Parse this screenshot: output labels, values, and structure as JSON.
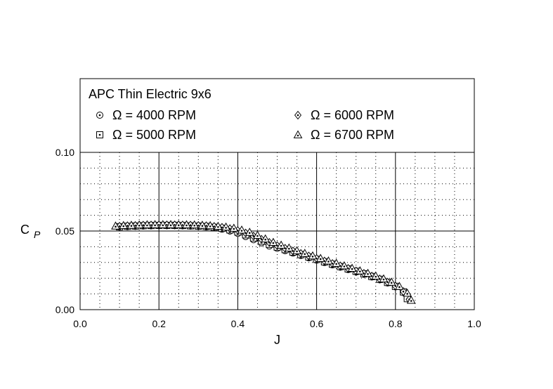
{
  "chart_data": {
    "type": "scatter",
    "title": "APC Thin Electric 9x6",
    "xlabel": "J",
    "ylabel_main": "C",
    "ylabel_sub": "P",
    "xlim": [
      0.0,
      1.0
    ],
    "ylim": [
      0.0,
      0.15
    ],
    "x_ticks": [
      "0.0",
      "0.2",
      "0.4",
      "0.6",
      "0.8",
      "1.0"
    ],
    "y_ticks": [
      "0.00",
      "0.05",
      "0.10"
    ],
    "grid": true,
    "legend_placement": "top",
    "series": [
      {
        "name": "Ω = 4000 RPM",
        "marker": "circle-dot",
        "x": [
          0.1,
          0.12,
          0.14,
          0.16,
          0.18,
          0.2,
          0.22,
          0.24,
          0.26,
          0.28,
          0.3,
          0.32,
          0.34,
          0.36,
          0.38,
          0.4,
          0.42,
          0.44,
          0.46,
          0.48,
          0.5,
          0.52,
          0.54,
          0.56,
          0.58,
          0.6,
          0.62,
          0.64,
          0.66,
          0.68,
          0.7,
          0.72,
          0.74,
          0.76,
          0.78,
          0.8,
          0.82,
          0.83
        ],
        "y": [
          0.0525,
          0.0528,
          0.053,
          0.0532,
          0.0533,
          0.0534,
          0.0534,
          0.0534,
          0.0533,
          0.0531,
          0.0529,
          0.0526,
          0.052,
          0.0512,
          0.05,
          0.0485,
          0.0465,
          0.0445,
          0.0425,
          0.0405,
          0.039,
          0.0375,
          0.036,
          0.0345,
          0.033,
          0.0315,
          0.03,
          0.0285,
          0.027,
          0.0255,
          0.024,
          0.0225,
          0.0208,
          0.019,
          0.017,
          0.0145,
          0.011,
          0.007
        ]
      },
      {
        "name": "Ω = 5000 RPM",
        "marker": "square-dot",
        "x": [
          0.1,
          0.12,
          0.14,
          0.16,
          0.18,
          0.2,
          0.22,
          0.24,
          0.26,
          0.28,
          0.3,
          0.32,
          0.34,
          0.36,
          0.38,
          0.4,
          0.42,
          0.44,
          0.46,
          0.48,
          0.5,
          0.52,
          0.54,
          0.56,
          0.58,
          0.6,
          0.62,
          0.64,
          0.66,
          0.68,
          0.7,
          0.72,
          0.74,
          0.76,
          0.78,
          0.8,
          0.82,
          0.83
        ],
        "y": [
          0.0527,
          0.053,
          0.0532,
          0.0534,
          0.0535,
          0.0536,
          0.0536,
          0.0536,
          0.0535,
          0.0533,
          0.0531,
          0.0529,
          0.0524,
          0.0517,
          0.0507,
          0.0494,
          0.0476,
          0.0456,
          0.0436,
          0.0416,
          0.0398,
          0.0382,
          0.0366,
          0.035,
          0.0335,
          0.032,
          0.0304,
          0.0289,
          0.0274,
          0.0259,
          0.0244,
          0.0228,
          0.0211,
          0.0193,
          0.0173,
          0.0148,
          0.0113,
          0.007
        ]
      },
      {
        "name": "Ω = 6000 RPM",
        "marker": "diamond-dot",
        "x": [
          0.1,
          0.12,
          0.14,
          0.16,
          0.18,
          0.2,
          0.22,
          0.24,
          0.26,
          0.28,
          0.3,
          0.32,
          0.34,
          0.36,
          0.38,
          0.4,
          0.42,
          0.44,
          0.46,
          0.48,
          0.5,
          0.52,
          0.54,
          0.56,
          0.58,
          0.6,
          0.62,
          0.64,
          0.66,
          0.68,
          0.7,
          0.72,
          0.74,
          0.76,
          0.78,
          0.8,
          0.82,
          0.835
        ],
        "y": [
          0.053,
          0.0533,
          0.0535,
          0.0537,
          0.0538,
          0.0539,
          0.0539,
          0.0539,
          0.0538,
          0.0537,
          0.0535,
          0.0533,
          0.0529,
          0.0523,
          0.0515,
          0.0503,
          0.0487,
          0.0467,
          0.0447,
          0.0427,
          0.0407,
          0.039,
          0.0373,
          0.0357,
          0.0341,
          0.0325,
          0.0309,
          0.0293,
          0.0278,
          0.0262,
          0.0246,
          0.023,
          0.0213,
          0.0195,
          0.0175,
          0.015,
          0.0115,
          0.0065
        ]
      },
      {
        "name": "Ω = 6700 RPM",
        "marker": "triangle-dot",
        "x": [
          0.09,
          0.11,
          0.13,
          0.15,
          0.17,
          0.19,
          0.21,
          0.23,
          0.25,
          0.27,
          0.29,
          0.31,
          0.33,
          0.35,
          0.37,
          0.39,
          0.41,
          0.43,
          0.45,
          0.47,
          0.49,
          0.51,
          0.53,
          0.55,
          0.57,
          0.59,
          0.61,
          0.63,
          0.65,
          0.67,
          0.69,
          0.71,
          0.73,
          0.75,
          0.77,
          0.79,
          0.81,
          0.83,
          0.84
        ],
        "y": [
          0.0532,
          0.0535,
          0.0537,
          0.0539,
          0.054,
          0.0541,
          0.0541,
          0.0541,
          0.0541,
          0.054,
          0.0539,
          0.0537,
          0.0534,
          0.053,
          0.0525,
          0.0518,
          0.0506,
          0.0492,
          0.0473,
          0.045,
          0.0428,
          0.041,
          0.0392,
          0.0375,
          0.0358,
          0.0342,
          0.0326,
          0.031,
          0.0295,
          0.0279,
          0.0263,
          0.0247,
          0.0231,
          0.0214,
          0.0196,
          0.0175,
          0.0148,
          0.0105,
          0.006
        ]
      }
    ]
  }
}
